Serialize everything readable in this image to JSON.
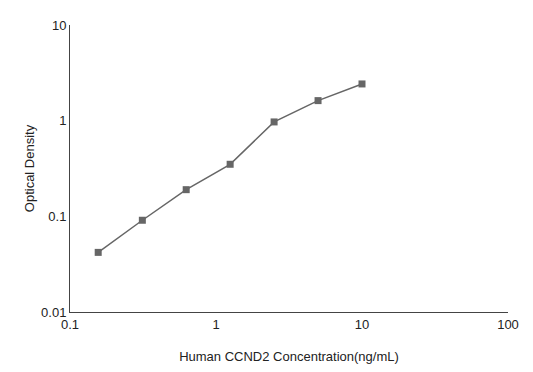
{
  "chart_data": {
    "type": "line",
    "x": [
      0.156,
      0.313,
      0.625,
      1.25,
      2.5,
      5.0,
      10.0
    ],
    "values": [
      0.042,
      0.091,
      0.19,
      0.35,
      0.97,
      1.62,
      2.42
    ],
    "xlabel": "Human CCND2 Concentration(ng/mL)",
    "ylabel": "Optical Density",
    "xlim": [
      0.1,
      100
    ],
    "ylim": [
      0.01,
      10
    ],
    "xticks": [
      0.1,
      1,
      10,
      100
    ],
    "yticks": [
      0.01,
      0.1,
      1,
      10
    ],
    "log": true,
    "grid": false,
    "color": "#666666",
    "marker": "square",
    "line_style": "solid"
  }
}
